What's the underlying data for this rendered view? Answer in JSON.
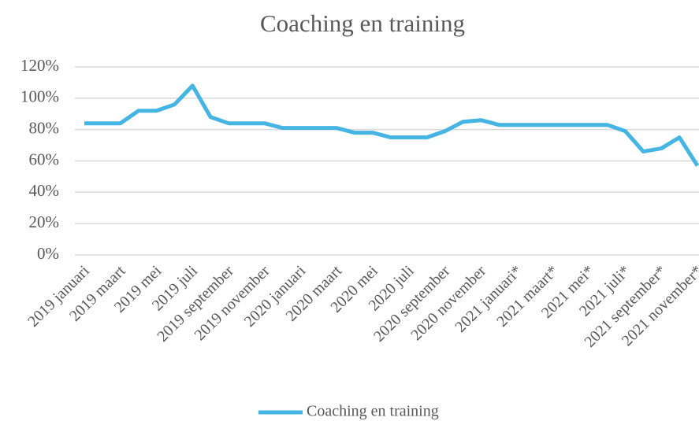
{
  "chart_data": {
    "type": "line",
    "title": "Coaching en training",
    "categories": [
      "2019 januari",
      null,
      "2019 maart",
      null,
      "2019 mei",
      null,
      "2019 juli",
      null,
      "2019 september",
      null,
      "2019 november",
      null,
      "2020 januari",
      null,
      "2020 maart",
      null,
      "2020 mei",
      null,
      "2020 juli",
      null,
      "2020 september",
      null,
      "2020 november",
      null,
      "2021 januari*",
      null,
      "2021 maart*",
      null,
      "2021 mei*",
      null,
      "2021 juli*",
      null,
      "2021 september*",
      null,
      "2021 november*"
    ],
    "series": [
      {
        "name": "Coaching en training",
        "color": "#45b5e3",
        "values": [
          84,
          84,
          84,
          92,
          92,
          96,
          108,
          88,
          84,
          84,
          84,
          81,
          81,
          81,
          81,
          78,
          78,
          75,
          75,
          75,
          79,
          85,
          86,
          83,
          83,
          83,
          83,
          83,
          83,
          83,
          79,
          66,
          68,
          75,
          57
        ]
      }
    ],
    "ylim": [
      0,
      120
    ],
    "yticks": [
      {
        "value": 0,
        "label": "0%"
      },
      {
        "value": 20,
        "label": "20%"
      },
      {
        "value": 40,
        "label": "40%"
      },
      {
        "value": 60,
        "label": "60%"
      },
      {
        "value": 80,
        "label": "80%"
      },
      {
        "value": 100,
        "label": "100%"
      },
      {
        "value": 120,
        "label": "120%"
      }
    ],
    "grid": true,
    "legend": "bottom"
  }
}
